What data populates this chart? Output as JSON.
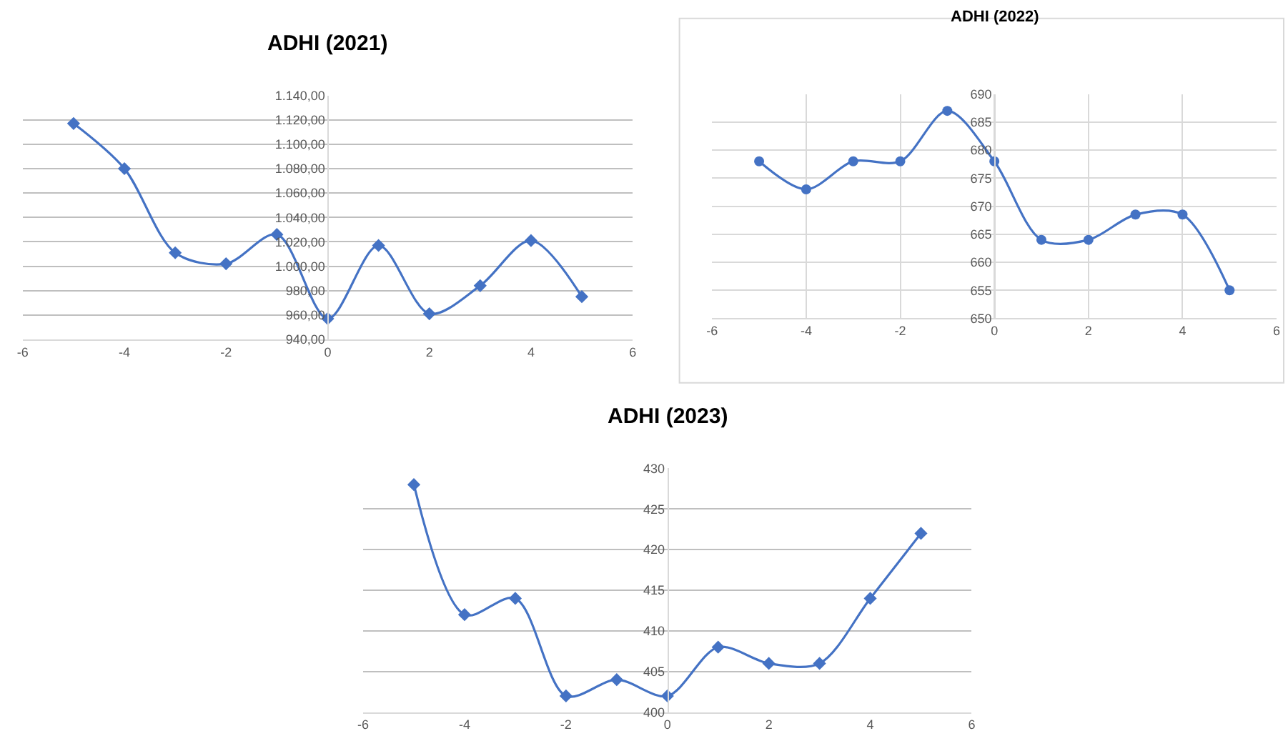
{
  "chart_data": [
    {
      "type": "line",
      "title": "ADHI (2021)",
      "x": [
        -5,
        -4,
        -3,
        -2,
        -1,
        0,
        1,
        2,
        3,
        4,
        5
      ],
      "color": "#4472c4",
      "marker": "diamond",
      "grid": "y",
      "values": [
        1117,
        1080,
        1011,
        1002,
        1026,
        957,
        1017,
        961,
        984,
        1021,
        975
      ],
      "xlim": [
        -6,
        6
      ],
      "xticks": [
        -6,
        -4,
        -2,
        0,
        2,
        4,
        6
      ],
      "ylim": [
        940,
        1140
      ],
      "yticks": [
        {
          "value": 940,
          "label": "940,00"
        },
        {
          "value": 960,
          "label": "960,00"
        },
        {
          "value": 980,
          "label": "980,00"
        },
        {
          "value": 1000,
          "label": "1.000,00"
        },
        {
          "value": 1020,
          "label": "1.020,00"
        },
        {
          "value": 1040,
          "label": "1.040,00"
        },
        {
          "value": 1060,
          "label": "1.060,00"
        },
        {
          "value": 1080,
          "label": "1.080,00"
        },
        {
          "value": 1100,
          "label": "1.100,00"
        },
        {
          "value": 1120,
          "label": "1.120,00"
        },
        {
          "value": 1140,
          "label": "1.140,00"
        }
      ]
    },
    {
      "type": "line",
      "title": "ADHI (2022)",
      "x": [
        -5,
        -4,
        -3,
        -2,
        -1,
        0,
        1,
        2,
        3,
        4,
        5
      ],
      "color": "#4472c4",
      "marker": "circle",
      "grid": true,
      "values": [
        678,
        673,
        678,
        678,
        687,
        678,
        664,
        664,
        668.5,
        668.5,
        655
      ],
      "xlim": [
        -6,
        6
      ],
      "xticks": [
        -6,
        -4,
        -2,
        0,
        2,
        4,
        6
      ],
      "ylim": [
        650,
        690
      ],
      "yticks": [
        650,
        655,
        660,
        665,
        670,
        675,
        680,
        685,
        690
      ]
    },
    {
      "type": "line",
      "title": "ADHI (2023)",
      "x": [
        -5,
        -4,
        -3,
        -2,
        -1,
        0,
        1,
        2,
        3,
        4,
        5
      ],
      "color": "#4472c4",
      "marker": "diamond",
      "grid": "y",
      "values": [
        428,
        412,
        414,
        402,
        404,
        402,
        408,
        406,
        406,
        414,
        422
      ],
      "xlim": [
        -6,
        6
      ],
      "xticks": [
        -6,
        -4,
        -2,
        0,
        2,
        4,
        6
      ],
      "ylim": [
        400,
        430
      ],
      "yticks": [
        400,
        405,
        410,
        415,
        420,
        425,
        430
      ]
    }
  ]
}
